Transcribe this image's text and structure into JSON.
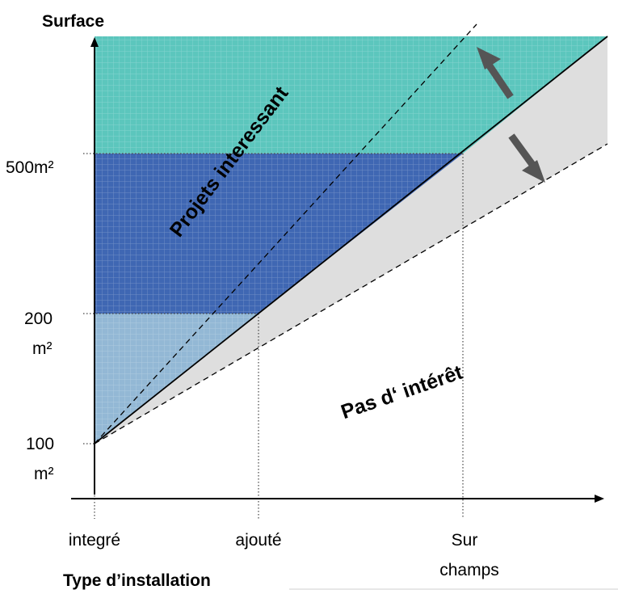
{
  "y_axis": {
    "title": "Surface",
    "ticks": [
      {
        "line1": "500m²",
        "line2": ""
      },
      {
        "line1": "200",
        "line2": "m²"
      },
      {
        "line1": "100",
        "line2": "m²"
      }
    ]
  },
  "x_axis": {
    "title": "Type d’installation",
    "ticks": [
      {
        "line1": "integré",
        "line2": ""
      },
      {
        "line1": "ajouté",
        "line2": ""
      },
      {
        "line1": "Sur",
        "line2": "champs"
      }
    ]
  },
  "regions": {
    "upper_label": "Projets interessant",
    "lower_label": "Pas d‘ intérêt"
  },
  "arrows": {
    "up": "arrow-up",
    "down": "arrow-down"
  },
  "colors": {
    "teal": "#5cc6bd",
    "dark_blue": "#3f67b3",
    "light_blue": "#93b8d5",
    "grey_region": "#dedede",
    "arrow": "#555555"
  }
}
